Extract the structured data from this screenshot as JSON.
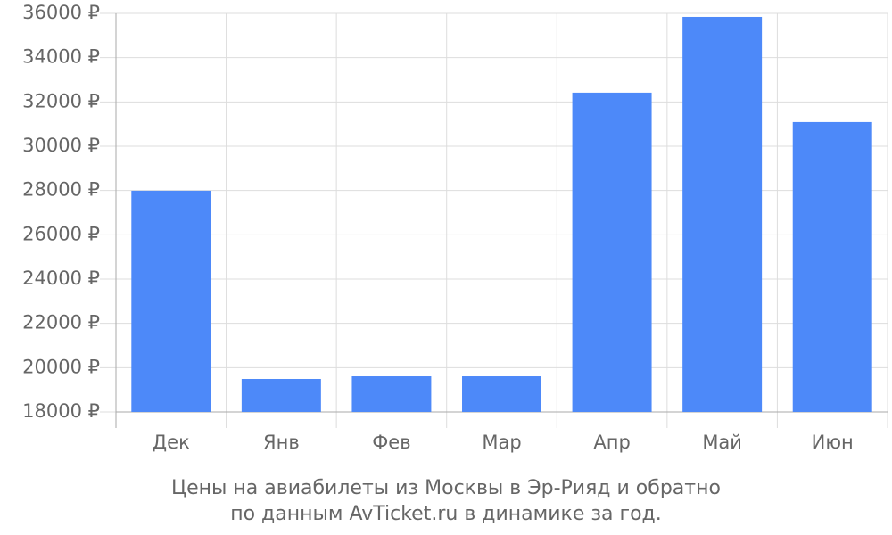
{
  "chart_data": {
    "type": "bar",
    "categories": [
      "Дек",
      "Янв",
      "Фев",
      "Мар",
      "Апр",
      "Май",
      "Июн"
    ],
    "values": [
      27990,
      19490,
      19610,
      19610,
      32420,
      35840,
      31090
    ],
    "color": "#4d89f9",
    "ylim": [
      18000,
      36000
    ],
    "yticks": [
      {
        "value": 18000,
        "label": "18000 ₽"
      },
      {
        "value": 20000,
        "label": "20000 ₽"
      },
      {
        "value": 22000,
        "label": "22000 ₽"
      },
      {
        "value": 24000,
        "label": "24000 ₽"
      },
      {
        "value": 26000,
        "label": "26000 ₽"
      },
      {
        "value": 28000,
        "label": "28000 ₽"
      },
      {
        "value": 30000,
        "label": "30000 ₽"
      },
      {
        "value": 32000,
        "label": "32000 ₽"
      },
      {
        "value": 34000,
        "label": "34000 ₽"
      },
      {
        "value": 36000,
        "label": "36000 ₽"
      }
    ],
    "grid": true,
    "caption": [
      "Цены на авиабилеты из Москвы в Эр-Рияд и обратно",
      "по данным AvTicket.ru в динамике за год."
    ]
  }
}
